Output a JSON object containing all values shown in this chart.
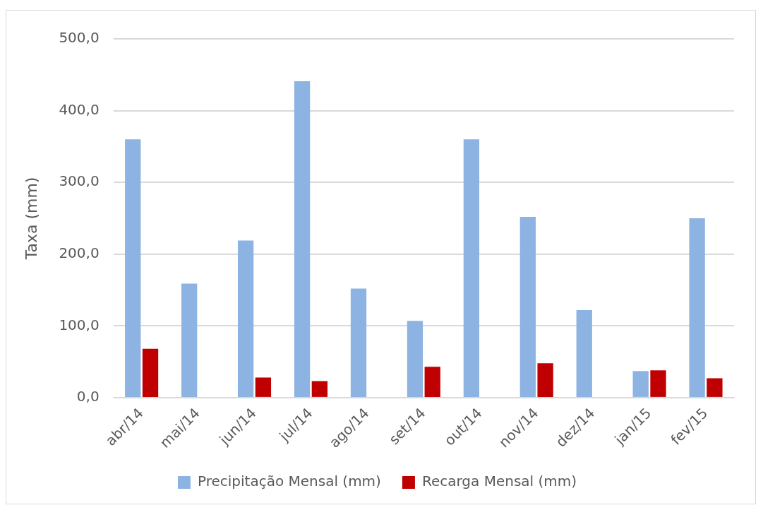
{
  "chart_data": {
    "type": "bar",
    "ylabel": "Taxa (mm)",
    "categories": [
      "abr/14",
      "mai/14",
      "jun/14",
      "jul/14",
      "ago/14",
      "set/14",
      "out/14",
      "nov/14",
      "dez/14",
      "jan/15",
      "fev/15"
    ],
    "series": [
      {
        "name": "Precipitação Mensal (mm)",
        "color": "#8db3e2",
        "values": [
          360,
          159,
          219,
          441,
          152,
          107,
          360,
          252,
          122,
          37,
          250
        ]
      },
      {
        "name": "Recarga Mensal (mm)",
        "color": "#c00000",
        "values": [
          68,
          0,
          28,
          23,
          0,
          43,
          0,
          48,
          0,
          38,
          27
        ]
      }
    ],
    "ylim": [
      0,
      500
    ],
    "yticks": [
      {
        "value": 0,
        "label": "0,0"
      },
      {
        "value": 100,
        "label": "100,0"
      },
      {
        "value": 200,
        "label": "200,0"
      },
      {
        "value": 300,
        "label": "300,0"
      },
      {
        "value": 400,
        "label": "400,0"
      },
      {
        "value": 500,
        "label": "500,0"
      }
    ],
    "grid": "y",
    "legend": "bottom"
  }
}
